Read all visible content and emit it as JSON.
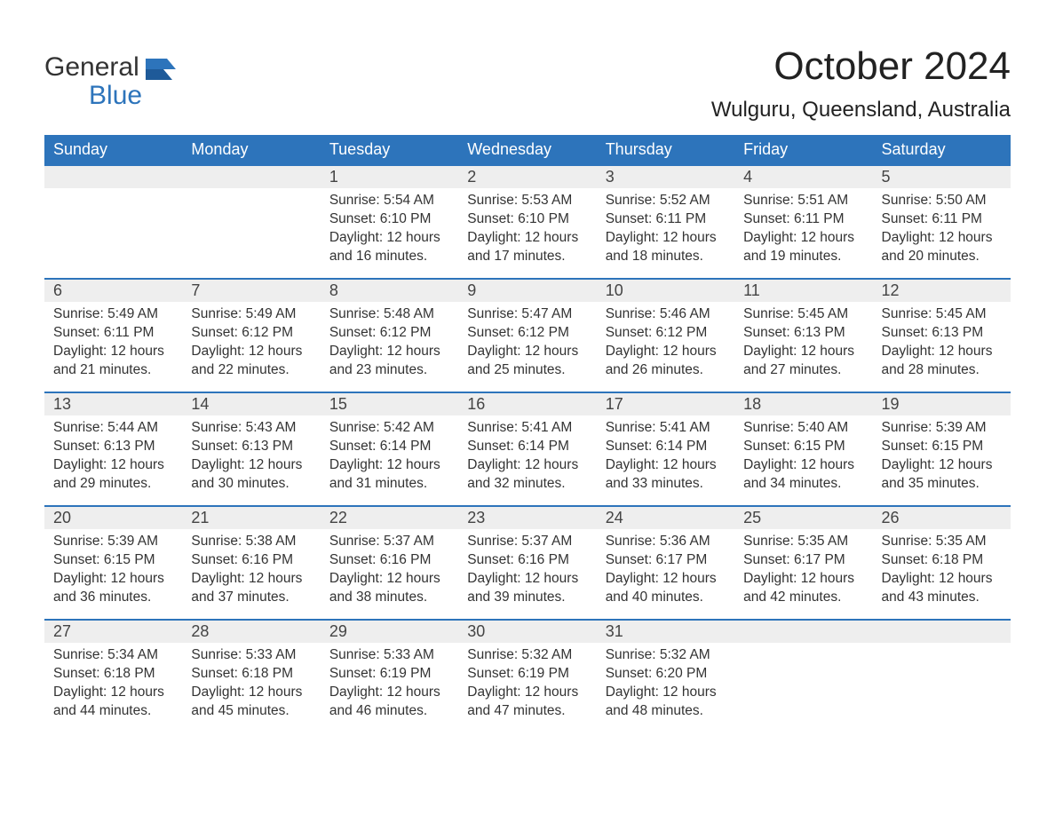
{
  "brand": {
    "line1": "General",
    "line2": "Blue"
  },
  "title": "October 2024",
  "location": "Wulguru, Queensland, Australia",
  "colors": {
    "header_bg": "#2d74bb",
    "header_text": "#ffffff",
    "daynum_bg": "#eeeeee",
    "row_border": "#2d74bb",
    "body_text": "#333333",
    "page_bg": "#ffffff",
    "logo_accent": "#2d74bb"
  },
  "fonts": {
    "title_pt": 44,
    "location_pt": 24,
    "header_pt": 18,
    "daynum_pt": 18,
    "body_pt": 15.5
  },
  "columns": [
    "Sunday",
    "Monday",
    "Tuesday",
    "Wednesday",
    "Thursday",
    "Friday",
    "Saturday"
  ],
  "labels": {
    "sunrise": "Sunrise:",
    "sunset": "Sunset:",
    "daylight": "Daylight:"
  },
  "weeks": [
    [
      null,
      null,
      {
        "n": "1",
        "sunrise": "5:54 AM",
        "sunset": "6:10 PM",
        "daylight": "12 hours and 16 minutes."
      },
      {
        "n": "2",
        "sunrise": "5:53 AM",
        "sunset": "6:10 PM",
        "daylight": "12 hours and 17 minutes."
      },
      {
        "n": "3",
        "sunrise": "5:52 AM",
        "sunset": "6:11 PM",
        "daylight": "12 hours and 18 minutes."
      },
      {
        "n": "4",
        "sunrise": "5:51 AM",
        "sunset": "6:11 PM",
        "daylight": "12 hours and 19 minutes."
      },
      {
        "n": "5",
        "sunrise": "5:50 AM",
        "sunset": "6:11 PM",
        "daylight": "12 hours and 20 minutes."
      }
    ],
    [
      {
        "n": "6",
        "sunrise": "5:49 AM",
        "sunset": "6:11 PM",
        "daylight": "12 hours and 21 minutes."
      },
      {
        "n": "7",
        "sunrise": "5:49 AM",
        "sunset": "6:12 PM",
        "daylight": "12 hours and 22 minutes."
      },
      {
        "n": "8",
        "sunrise": "5:48 AM",
        "sunset": "6:12 PM",
        "daylight": "12 hours and 23 minutes."
      },
      {
        "n": "9",
        "sunrise": "5:47 AM",
        "sunset": "6:12 PM",
        "daylight": "12 hours and 25 minutes."
      },
      {
        "n": "10",
        "sunrise": "5:46 AM",
        "sunset": "6:12 PM",
        "daylight": "12 hours and 26 minutes."
      },
      {
        "n": "11",
        "sunrise": "5:45 AM",
        "sunset": "6:13 PM",
        "daylight": "12 hours and 27 minutes."
      },
      {
        "n": "12",
        "sunrise": "5:45 AM",
        "sunset": "6:13 PM",
        "daylight": "12 hours and 28 minutes."
      }
    ],
    [
      {
        "n": "13",
        "sunrise": "5:44 AM",
        "sunset": "6:13 PM",
        "daylight": "12 hours and 29 minutes."
      },
      {
        "n": "14",
        "sunrise": "5:43 AM",
        "sunset": "6:13 PM",
        "daylight": "12 hours and 30 minutes."
      },
      {
        "n": "15",
        "sunrise": "5:42 AM",
        "sunset": "6:14 PM",
        "daylight": "12 hours and 31 minutes."
      },
      {
        "n": "16",
        "sunrise": "5:41 AM",
        "sunset": "6:14 PM",
        "daylight": "12 hours and 32 minutes."
      },
      {
        "n": "17",
        "sunrise": "5:41 AM",
        "sunset": "6:14 PM",
        "daylight": "12 hours and 33 minutes."
      },
      {
        "n": "18",
        "sunrise": "5:40 AM",
        "sunset": "6:15 PM",
        "daylight": "12 hours and 34 minutes."
      },
      {
        "n": "19",
        "sunrise": "5:39 AM",
        "sunset": "6:15 PM",
        "daylight": "12 hours and 35 minutes."
      }
    ],
    [
      {
        "n": "20",
        "sunrise": "5:39 AM",
        "sunset": "6:15 PM",
        "daylight": "12 hours and 36 minutes."
      },
      {
        "n": "21",
        "sunrise": "5:38 AM",
        "sunset": "6:16 PM",
        "daylight": "12 hours and 37 minutes."
      },
      {
        "n": "22",
        "sunrise": "5:37 AM",
        "sunset": "6:16 PM",
        "daylight": "12 hours and 38 minutes."
      },
      {
        "n": "23",
        "sunrise": "5:37 AM",
        "sunset": "6:16 PM",
        "daylight": "12 hours and 39 minutes."
      },
      {
        "n": "24",
        "sunrise": "5:36 AM",
        "sunset": "6:17 PM",
        "daylight": "12 hours and 40 minutes."
      },
      {
        "n": "25",
        "sunrise": "5:35 AM",
        "sunset": "6:17 PM",
        "daylight": "12 hours and 42 minutes."
      },
      {
        "n": "26",
        "sunrise": "5:35 AM",
        "sunset": "6:18 PM",
        "daylight": "12 hours and 43 minutes."
      }
    ],
    [
      {
        "n": "27",
        "sunrise": "5:34 AM",
        "sunset": "6:18 PM",
        "daylight": "12 hours and 44 minutes."
      },
      {
        "n": "28",
        "sunrise": "5:33 AM",
        "sunset": "6:18 PM",
        "daylight": "12 hours and 45 minutes."
      },
      {
        "n": "29",
        "sunrise": "5:33 AM",
        "sunset": "6:19 PM",
        "daylight": "12 hours and 46 minutes."
      },
      {
        "n": "30",
        "sunrise": "5:32 AM",
        "sunset": "6:19 PM",
        "daylight": "12 hours and 47 minutes."
      },
      {
        "n": "31",
        "sunrise": "5:32 AM",
        "sunset": "6:20 PM",
        "daylight": "12 hours and 48 minutes."
      },
      null,
      null
    ]
  ]
}
